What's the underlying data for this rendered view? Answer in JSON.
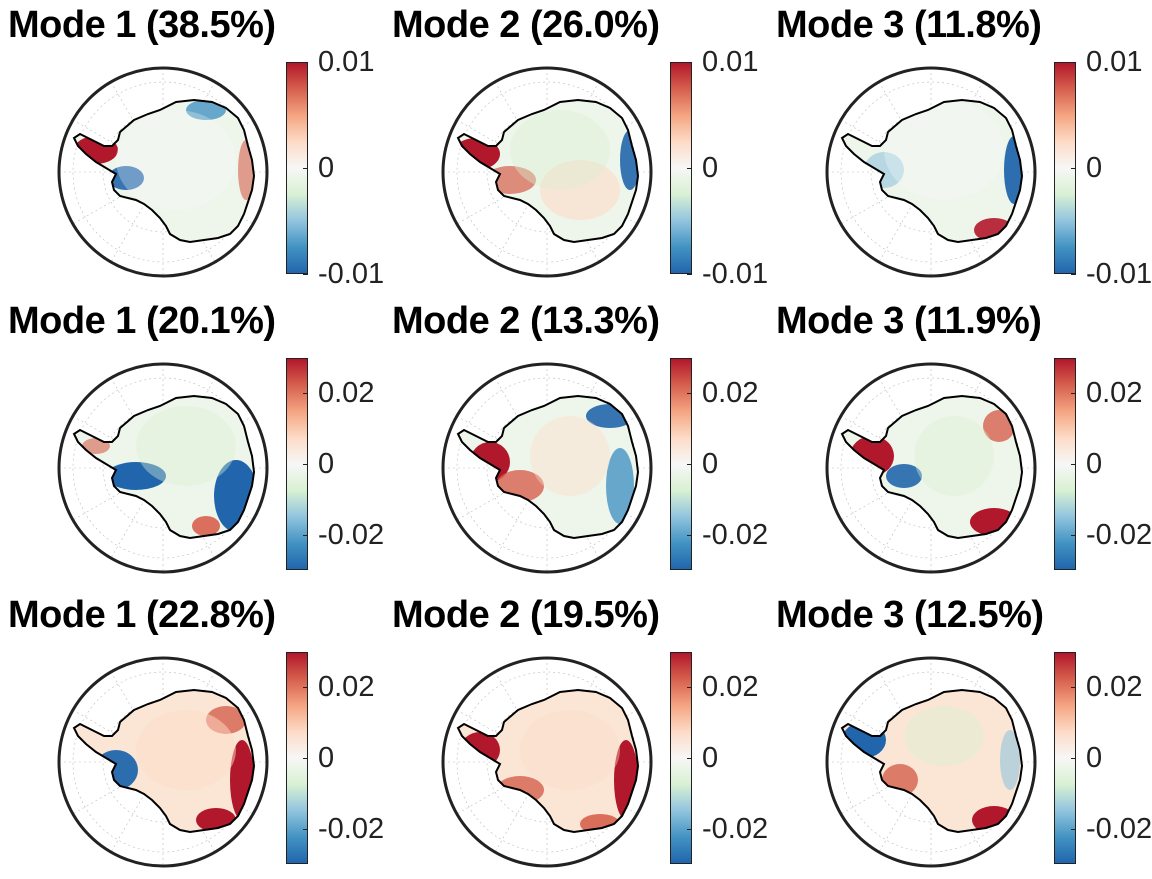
{
  "colors": {
    "dark_red": "#b2182b",
    "red": "#d6604d",
    "orange": "#f4a582",
    "light_orange": "#fddbc7",
    "white": "#f7f7f7",
    "light_green": "#d9f0d3",
    "light_blue": "#92c5de",
    "blue": "#4393c3",
    "dark_blue": "#2166ac"
  },
  "chart_data": [
    {
      "type": "heatmap",
      "title": "Mode 1 (38.5%)",
      "colorbar": {
        "ticks": [
          "0.01",
          "0",
          "-0.01"
        ],
        "range": [
          -0.01,
          0.01
        ]
      }
    },
    {
      "type": "heatmap",
      "title": "Mode 2 (26.0%)",
      "colorbar": {
        "ticks": [
          "0.01",
          "0",
          "-0.01"
        ],
        "range": [
          -0.01,
          0.01
        ]
      }
    },
    {
      "type": "heatmap",
      "title": "Mode 3 (11.8%)",
      "colorbar": {
        "ticks": [
          "0.01",
          "0",
          "-0.01"
        ],
        "range": [
          -0.01,
          0.01
        ]
      }
    },
    {
      "type": "heatmap",
      "title": "Mode 1 (20.1%)",
      "colorbar": {
        "ticks": [
          "0.02",
          "0",
          "-0.02"
        ],
        "range": [
          -0.03,
          0.03
        ]
      }
    },
    {
      "type": "heatmap",
      "title": "Mode 2 (13.3%)",
      "colorbar": {
        "ticks": [
          "0.02",
          "0",
          "-0.02"
        ],
        "range": [
          -0.03,
          0.03
        ]
      }
    },
    {
      "type": "heatmap",
      "title": "Mode 3 (11.9%)",
      "colorbar": {
        "ticks": [
          "0.02",
          "0",
          "-0.02"
        ],
        "range": [
          -0.03,
          0.03
        ]
      }
    },
    {
      "type": "heatmap",
      "title": "Mode 1 (22.8%)",
      "colorbar": {
        "ticks": [
          "0.02",
          "0",
          "-0.02"
        ],
        "range": [
          -0.03,
          0.03
        ]
      }
    },
    {
      "type": "heatmap",
      "title": "Mode 2 (19.5%)",
      "colorbar": {
        "ticks": [
          "0.02",
          "0",
          "-0.02"
        ],
        "range": [
          -0.03,
          0.03
        ]
      }
    },
    {
      "type": "heatmap",
      "title": "Mode 3 (12.5%)",
      "colorbar": {
        "ticks": [
          "0.02",
          "0",
          "-0.02"
        ],
        "range": [
          -0.03,
          0.03
        ]
      }
    }
  ]
}
